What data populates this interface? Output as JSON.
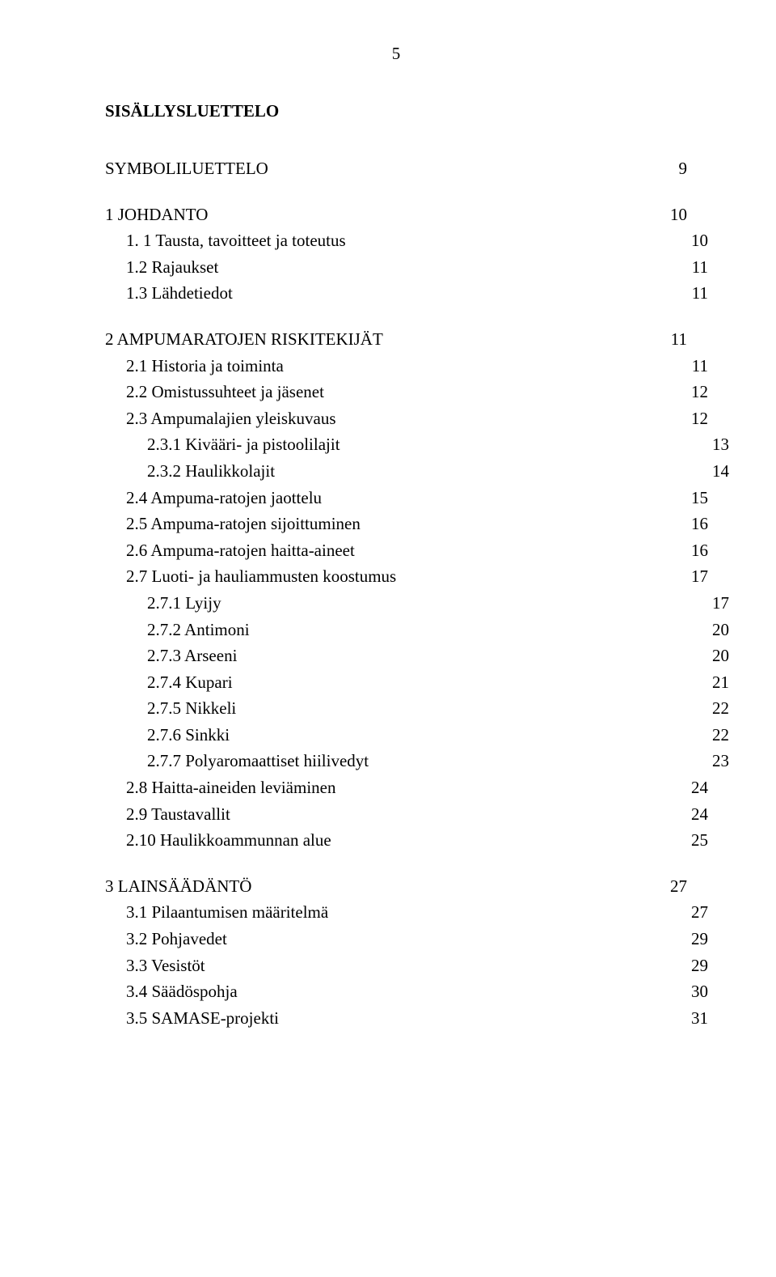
{
  "page_number": "5",
  "title": "SISÄLLYSLUETTELO",
  "entries": [
    {
      "label": "SYMBOLILUETTELO",
      "page": "9",
      "indent": 0,
      "gap_before": false
    },
    {
      "label": "1  JOHDANTO",
      "page": "10",
      "indent": 0,
      "gap_before": true
    },
    {
      "label": "1. 1 Tausta, tavoitteet ja toteutus",
      "page": "10",
      "indent": 1,
      "gap_before": false
    },
    {
      "label": "1.2 Rajaukset",
      "page": "11",
      "indent": 1,
      "gap_before": false
    },
    {
      "label": "1.3 Lähdetiedot",
      "page": "11",
      "indent": 1,
      "gap_before": false
    },
    {
      "label": "2  AMPUMARATOJEN RISKITEKIJÄT",
      "page": "11",
      "indent": 0,
      "gap_before": true
    },
    {
      "label": "2.1 Historia ja toiminta",
      "page": "11",
      "indent": 1,
      "gap_before": false
    },
    {
      "label": "2.2 Omistussuhteet ja jäsenet",
      "page": "12",
      "indent": 1,
      "gap_before": false
    },
    {
      "label": "2.3 Ampumalajien yleiskuvaus",
      "page": "12",
      "indent": 1,
      "gap_before": false
    },
    {
      "label": "2.3.1 Kivääri- ja pistoolilajit",
      "page": "13",
      "indent": 2,
      "gap_before": false
    },
    {
      "label": "2.3.2 Haulikkolajit",
      "page": "14",
      "indent": 2,
      "gap_before": false
    },
    {
      "label": "2.4 Ampuma-ratojen jaottelu",
      "page": "15",
      "indent": 1,
      "gap_before": false
    },
    {
      "label": "2.5 Ampuma-ratojen sijoittuminen",
      "page": "16",
      "indent": 1,
      "gap_before": false
    },
    {
      "label": "2.6 Ampuma-ratojen haitta-aineet",
      "page": "16",
      "indent": 1,
      "gap_before": false
    },
    {
      "label": "2.7 Luoti- ja hauliammusten koostumus",
      "page": "17",
      "indent": 1,
      "gap_before": false
    },
    {
      "label": "2.7.1 Lyijy",
      "page": "17",
      "indent": 2,
      "gap_before": false
    },
    {
      "label": "2.7.2 Antimoni",
      "page": "20",
      "indent": 2,
      "gap_before": false
    },
    {
      "label": "2.7.3 Arseeni",
      "page": "20",
      "indent": 2,
      "gap_before": false
    },
    {
      "label": "2.7.4 Kupari",
      "page": "21",
      "indent": 2,
      "gap_before": false
    },
    {
      "label": "2.7.5 Nikkeli",
      "page": "22",
      "indent": 2,
      "gap_before": false
    },
    {
      "label": "2.7.6 Sinkki",
      "page": "22",
      "indent": 2,
      "gap_before": false
    },
    {
      "label": "2.7.7 Polyaromaattiset hiilivedyt",
      "page": "23",
      "indent": 2,
      "gap_before": false
    },
    {
      "label": "2.8 Haitta-aineiden leviäminen",
      "page": "24",
      "indent": 1,
      "gap_before": false
    },
    {
      "label": "2.9 Taustavallit",
      "page": "24",
      "indent": 1,
      "gap_before": false
    },
    {
      "label": "2.10 Haulikkoammunnan alue",
      "page": "25",
      "indent": 1,
      "gap_before": false
    },
    {
      "label": "3  LAINSÄÄDÄNTÖ",
      "page": "27",
      "indent": 0,
      "gap_before": true
    },
    {
      "label": "3.1 Pilaantumisen määritelmä",
      "page": "27",
      "indent": 1,
      "gap_before": false
    },
    {
      "label": "3.2 Pohjavedet",
      "page": "29",
      "indent": 1,
      "gap_before": false
    },
    {
      "label": "3.3 Vesistöt",
      "page": "29",
      "indent": 1,
      "gap_before": false
    },
    {
      "label": "3.4 Säädöspohja",
      "page": "30",
      "indent": 1,
      "gap_before": false
    },
    {
      "label": "3.5 SAMASE-projekti",
      "page": "31",
      "indent": 1,
      "gap_before": false
    }
  ]
}
